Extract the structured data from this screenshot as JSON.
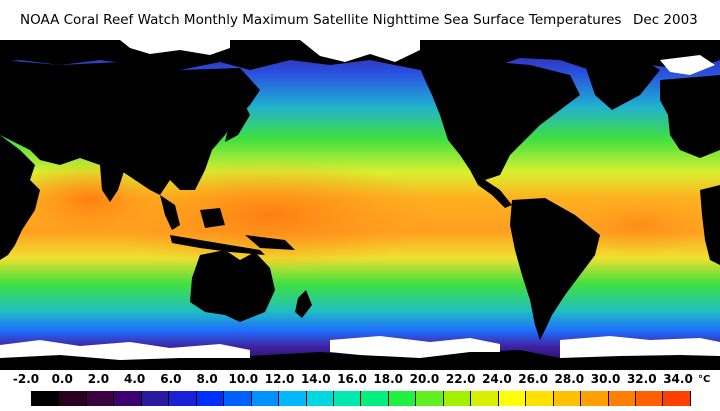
{
  "title": {
    "main": "NOAA Coral Reef Watch Monthly Maximum Satellite Nighttime Sea Surface Temperatures",
    "date": "Dec 2003"
  },
  "colors": {
    "ocean_tropical_warm": "#ff8a1c",
    "ocean_warm": "#ffb020",
    "ocean_mid": "#f0e020",
    "ocean_temperate": "#40e040",
    "ocean_cool": "#18d0b0",
    "ocean_cold": "#2080ff",
    "ocean_polar": "#3a1a90",
    "land": "#000000",
    "ice": "#ffffff"
  },
  "legend": {
    "unit": "°C",
    "labels": [
      "-2.0",
      "0.0",
      "2.0",
      "4.0",
      "6.0",
      "8.0",
      "10.0",
      "12.0",
      "14.0",
      "16.0",
      "18.0",
      "20.0",
      "22.0",
      "24.0",
      "26.0",
      "28.0",
      "30.0",
      "32.0",
      "34.0"
    ],
    "swatches": [
      "#000000",
      "#2a0020",
      "#3a0040",
      "#3c0070",
      "#2a1aa0",
      "#1a20d8",
      "#0030ff",
      "#0060ff",
      "#0090ff",
      "#00b8ff",
      "#00d8e0",
      "#00e8b0",
      "#00f080",
      "#20f040",
      "#60f020",
      "#a0f000",
      "#d8f000",
      "#ffff00",
      "#ffe000",
      "#ffc000",
      "#ffa000",
      "#ff8000",
      "#ff6000",
      "#ff4000"
    ]
  }
}
